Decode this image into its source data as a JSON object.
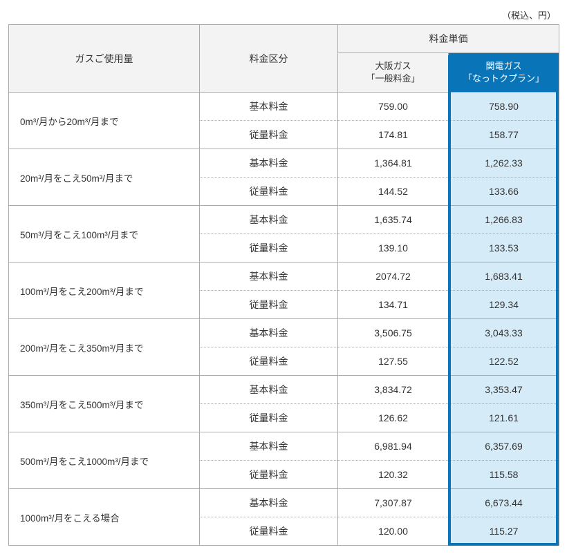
{
  "unit_note": "（税込、円）",
  "headers": {
    "usage": "ガスご使用量",
    "category": "料金区分",
    "unit_top": "料金単価",
    "osaka": "大阪ガス\n「一般料金」",
    "kanden": "関電ガス\n「なっトクプラン」"
  },
  "cat_labels": {
    "base": "基本料金",
    "usage_rate": "従量料金"
  },
  "rows": [
    {
      "usage": "0m³/月から20m³/月まで",
      "base_osaka": "759.00",
      "base_kanden": "758.90",
      "rate_osaka": "174.81",
      "rate_kanden": "158.77"
    },
    {
      "usage": "20m³/月をこえ50m³/月まで",
      "base_osaka": "1,364.81",
      "base_kanden": "1,262.33",
      "rate_osaka": "144.52",
      "rate_kanden": "133.66"
    },
    {
      "usage": "50m³/月をこえ100m³/月まで",
      "base_osaka": "1,635.74",
      "base_kanden": "1,266.83",
      "rate_osaka": "139.10",
      "rate_kanden": "133.53"
    },
    {
      "usage": "100m³/月をこえ200m³/月まで",
      "base_osaka": "2074.72",
      "base_kanden": "1,683.41",
      "rate_osaka": "134.71",
      "rate_kanden": "129.34"
    },
    {
      "usage": "200m³/月をこえ350m³/月まで",
      "base_osaka": "3,506.75",
      "base_kanden": "3,043.33",
      "rate_osaka": "127.55",
      "rate_kanden": "122.52"
    },
    {
      "usage": "350m³/月をこえ500m³/月まで",
      "base_osaka": "3,834.72",
      "base_kanden": "3,353.47",
      "rate_osaka": "126.62",
      "rate_kanden": "121.61"
    },
    {
      "usage": "500m³/月をこえ1000m³/月まで",
      "base_osaka": "6,981.94",
      "base_kanden": "6,357.69",
      "rate_osaka": "120.32",
      "rate_kanden": "115.58"
    },
    {
      "usage": "1000m³/月をこえる場合",
      "base_osaka": "7,307.87",
      "base_kanden": "6,673.44",
      "rate_osaka": "120.00",
      "rate_kanden": "115.27"
    }
  ],
  "style": {
    "border_color": "#a8acae",
    "header_bg": "#f3f3f3",
    "kanden_header_bg": "#0a74b8",
    "kanden_header_fg": "#ffffff",
    "kanden_cell_bg": "#d5ebf7",
    "kanden_highlight_border": "#0a74b8",
    "font_size_body": 14,
    "font_size_header_sub": 13
  }
}
